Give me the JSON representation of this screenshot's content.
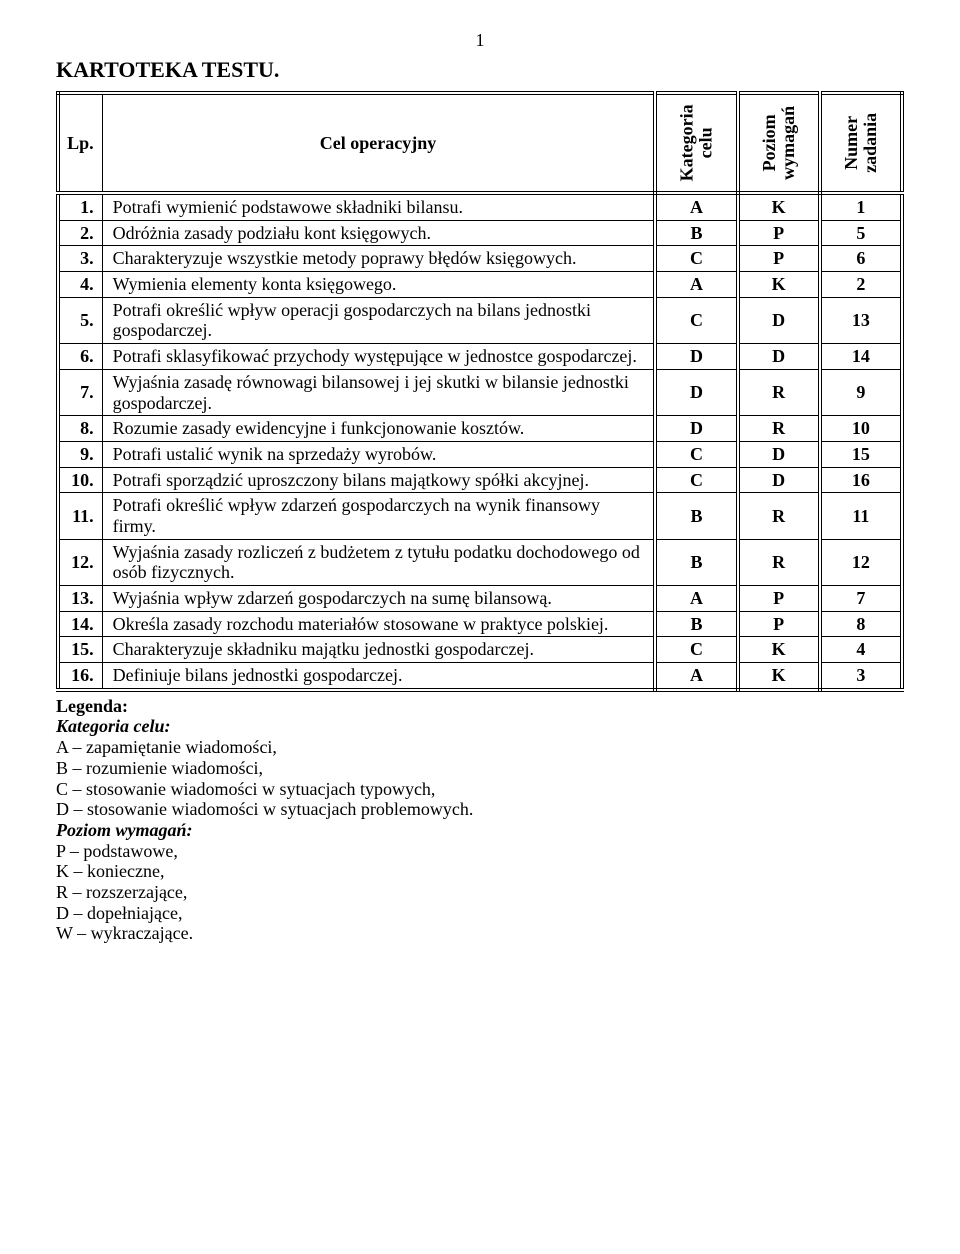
{
  "page_number": "1",
  "doc_title": "KARTOTEKA  TESTU.",
  "headers": {
    "lp": "Lp.",
    "cel": "Cel operacyjny",
    "kat": "Kategoria\ncelu",
    "poz": "Poziom\nwymagań",
    "num": "Numer\nzadania"
  },
  "rows": [
    {
      "lp": "1.",
      "cel": "Potrafi wymienić podstawowe składniki bilansu.",
      "kat": "A",
      "poz": "K",
      "num": "1"
    },
    {
      "lp": "2.",
      "cel": "Odróżnia zasady podziału kont księgowych.",
      "kat": "B",
      "poz": "P",
      "num": "5"
    },
    {
      "lp": "3.",
      "cel": "Charakteryzuje wszystkie metody poprawy błędów księgowych.",
      "kat": "C",
      "poz": "P",
      "num": "6"
    },
    {
      "lp": "4.",
      "cel": "Wymienia elementy konta księgowego.",
      "kat": "A",
      "poz": "K",
      "num": "2"
    },
    {
      "lp": "5.",
      "cel": "Potrafi określić wpływ operacji gospodarczych na bilans jednostki gospodarczej.",
      "kat": "C",
      "poz": "D",
      "num": "13"
    },
    {
      "lp": "6.",
      "cel": "Potrafi sklasyfikować przychody występujące w jednostce gospodarczej.",
      "kat": "D",
      "poz": "D",
      "num": "14"
    },
    {
      "lp": "7.",
      "cel": "Wyjaśnia zasadę równowagi bilansowej i jej skutki w bilansie jednostki gospodarczej.",
      "kat": "D",
      "poz": "R",
      "num": "9"
    },
    {
      "lp": "8.",
      "cel": "Rozumie zasady ewidencyjne i funkcjonowanie  kosztów.",
      "kat": "D",
      "poz": "R",
      "num": "10"
    },
    {
      "lp": "9.",
      "cel": "Potrafi ustalić wynik na sprzedaży wyrobów.",
      "kat": "C",
      "poz": "D",
      "num": "15"
    },
    {
      "lp": "10.",
      "cel": "Potrafi sporządzić uproszczony bilans majątkowy spółki akcyjnej.",
      "kat": "C",
      "poz": "D",
      "num": "16"
    },
    {
      "lp": "11.",
      "cel": "Potrafi określić wpływ zdarzeń gospodarczych na wynik finansowy firmy.",
      "kat": "B",
      "poz": "R",
      "num": "11"
    },
    {
      "lp": "12.",
      "cel": "Wyjaśnia zasady rozliczeń z budżetem z tytułu podatku dochodowego od osób fizycznych.",
      "kat": "B",
      "poz": "R",
      "num": "12"
    },
    {
      "lp": "13.",
      "cel": "Wyjaśnia wpływ zdarzeń gospodarczych na sumę bilansową.",
      "kat": "A",
      "poz": "P",
      "num": "7"
    },
    {
      "lp": "14.",
      "cel": "Określa zasady rozchodu materiałów stosowane w praktyce polskiej.",
      "kat": "B",
      "poz": "P",
      "num": "8"
    },
    {
      "lp": "15.",
      "cel": "Charakteryzuje składniku majątku jednostki gospodarczej.",
      "kat": "C",
      "poz": "K",
      "num": "4"
    },
    {
      "lp": "16.",
      "cel": "Definiuje bilans jednostki gospodarczej.",
      "kat": "A",
      "poz": "K",
      "num": "3"
    }
  ],
  "legend": {
    "head": "Legenda:",
    "cat_title": "Kategoria celu:",
    "cat_lines": [
      "A – zapamiętanie wiadomości,",
      "B – rozumienie wiadomości,",
      "C – stosowanie wiadomości w sytuacjach typowych,",
      "D – stosowanie wiadomości w sytuacjach problemowych."
    ],
    "poz_title": "Poziom wymagań:",
    "poz_lines": [
      "P – podstawowe,",
      "K – konieczne,",
      "R – rozszerzające,",
      "D – dopełniające,",
      "W – wykraczające."
    ]
  }
}
